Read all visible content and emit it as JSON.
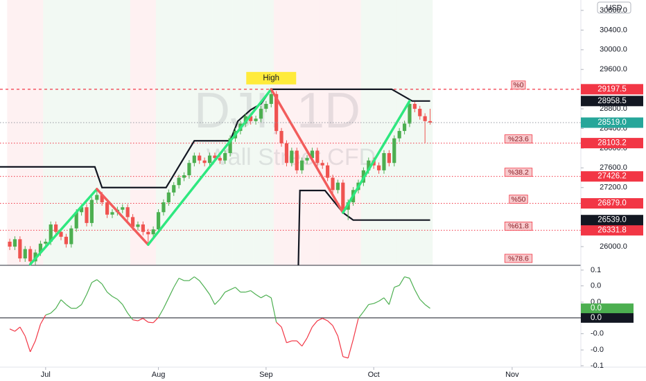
{
  "chart_data": [
    {
      "type": "candlestick",
      "title": "DJI, 1D",
      "subtitle": "Wall Street CFD",
      "currency": "USD",
      "up_color": "#4caf50",
      "down_color": "#ef5350",
      "open": [
        26100,
        26000,
        26150,
        25760,
        25950,
        25700,
        25880,
        26060,
        26100,
        26450,
        26300,
        26200,
        26050,
        26370,
        26700,
        26800,
        26480,
        26950,
        27050,
        26900,
        26650,
        26700,
        26750,
        26800,
        26600,
        26400,
        26450,
        26300,
        26250,
        26350,
        26700,
        26900,
        27100,
        27250,
        27400,
        27450,
        27700,
        27850,
        27750,
        27700,
        27850,
        27800,
        27750,
        27900,
        28200,
        28350,
        28500,
        28650,
        28550,
        28600,
        28800,
        28900,
        29100,
        28350,
        28100,
        27700,
        27950,
        27550,
        27750,
        27800,
        27950,
        27700,
        27650,
        27400,
        27150,
        27300,
        26750,
        26900,
        27150,
        27300,
        27550,
        27750,
        27650,
        27550,
        27900,
        27700,
        28200,
        28350,
        28500,
        28900,
        28800,
        28650,
        28550
      ],
      "high": [
        26160,
        26210,
        26210,
        26010,
        26010,
        25940,
        26120,
        26160,
        26510,
        26510,
        26360,
        26260,
        26430,
        26760,
        26860,
        26860,
        27010,
        27170,
        27110,
        26960,
        26760,
        26810,
        26860,
        26860,
        26660,
        26510,
        26510,
        26360,
        26410,
        26760,
        26960,
        27160,
        27310,
        27460,
        27510,
        27760,
        27910,
        27910,
        27810,
        27910,
        27910,
        27860,
        27960,
        28260,
        28410,
        28560,
        28710,
        28710,
        28660,
        28860,
        28960,
        29197.5,
        29160,
        28410,
        28160,
        28010,
        28010,
        27810,
        27860,
        28010,
        28010,
        27760,
        27710,
        27460,
        27360,
        27360,
        26960,
        27210,
        27360,
        27610,
        27810,
        27810,
        27710,
        27960,
        27960,
        28260,
        28410,
        28560,
        28958.5,
        28940,
        28860,
        28710,
        28800
      ],
      "low": [
        25930,
        25930,
        25690,
        25690,
        25640,
        25630,
        25810,
        25990,
        26030,
        26230,
        26130,
        25980,
        25980,
        26300,
        26630,
        26410,
        26410,
        26880,
        26830,
        26580,
        26580,
        26630,
        26680,
        26530,
        26330,
        26330,
        26230,
        26040,
        26180,
        26280,
        26630,
        26830,
        27030,
        27180,
        27330,
        27380,
        27630,
        27680,
        27630,
        27630,
        27730,
        27680,
        27680,
        27830,
        28130,
        28280,
        28430,
        28480,
        28480,
        28530,
        28730,
        28830,
        28280,
        28030,
        27630,
        27630,
        27480,
        27480,
        27680,
        27730,
        27630,
        27580,
        27330,
        27080,
        27080,
        26690,
        26539,
        26830,
        27080,
        27230,
        27480,
        27580,
        27480,
        27480,
        27630,
        27630,
        28130,
        28280,
        28430,
        28730,
        28580,
        28110,
        28480
      ],
      "close": [
        26000,
        26150,
        25760,
        25950,
        25700,
        25880,
        26060,
        26100,
        26450,
        26300,
        26200,
        26050,
        26370,
        26700,
        26800,
        26480,
        26950,
        27050,
        26900,
        26650,
        26700,
        26750,
        26800,
        26600,
        26400,
        26450,
        26300,
        26250,
        26350,
        26700,
        26900,
        27100,
        27250,
        27400,
        27450,
        27700,
        27850,
        27750,
        27700,
        27850,
        27800,
        27750,
        27900,
        28200,
        28350,
        28500,
        28650,
        28550,
        28600,
        28800,
        28900,
        29100,
        28350,
        28100,
        27700,
        27950,
        27550,
        27750,
        27800,
        27950,
        27700,
        27650,
        27400,
        27150,
        27300,
        26750,
        26900,
        27150,
        27300,
        27550,
        27750,
        27650,
        27550,
        27900,
        27700,
        28200,
        28350,
        28500,
        28900,
        28800,
        28650,
        28550,
        28519
      ],
      "xlim": [
        -1.9,
        111.4
      ],
      "xticks": [
        {
          "value": 7,
          "label": "Jul"
        },
        {
          "value": 29,
          "label": "Aug"
        },
        {
          "value": 50,
          "label": "Sep"
        },
        {
          "value": 71,
          "label": "Oct"
        },
        {
          "value": 98,
          "label": "Nov"
        }
      ],
      "ylim": [
        25620,
        31011
      ],
      "yticks": [
        {
          "value": 26000,
          "label": "26000.0"
        },
        {
          "value": 27200,
          "label": "27200.0"
        },
        {
          "value": 27600,
          "label": "27600.0"
        },
        {
          "value": 28000,
          "label": "28000.0"
        },
        {
          "value": 28400,
          "label": "28400.0"
        },
        {
          "value": 28800,
          "label": "28800.0"
        },
        {
          "value": 29600,
          "label": "29600.0"
        },
        {
          "value": 30000,
          "label": "30000.0"
        },
        {
          "value": 30400,
          "label": "30400.0"
        },
        {
          "value": 30800,
          "label": "30800.0"
        }
      ],
      "zigzag": {
        "x": [
          4,
          17,
          27,
          51,
          65,
          78
        ],
        "values": [
          25640,
          27170,
          26040,
          29197.5,
          26690,
          28958.5
        ],
        "up_color": "#2ee87f",
        "down_color": "#f25c5c",
        "peak_label": "High"
      },
      "channel": [
        {
          "x": [
            -1.9,
            16.6,
            18,
            30.5,
            36,
            43,
            44.5,
            47,
            49,
            51,
            74.5,
            78.5,
            82
          ],
          "values": [
            27620,
            27620,
            27200,
            27200,
            28150,
            28150,
            28550,
            28780,
            28900,
            29197.5,
            29197.5,
            28958.5,
            28958.5
          ],
          "color": "#131722",
          "tag": "28958.5"
        },
        {
          "x": [
            56.3,
            56.6,
            61.5,
            65,
            67,
            82
          ],
          "values": [
            25620,
            27140,
            27140,
            26690,
            26539,
            26539
          ],
          "color": "#131722",
          "tag": "26539.0"
        }
      ],
      "fib_color": "#f23645",
      "fib_levels": [
        {
          "name": "%0",
          "value": 29197.5,
          "label": "29197.5"
        },
        {
          "name": "%23.6",
          "value": 28103.2,
          "label": "28103.2"
        },
        {
          "name": "%38.2",
          "value": 27426.2,
          "label": "27426.2"
        },
        {
          "name": "%50",
          "value": 26879,
          "label": "26879.0"
        },
        {
          "name": "%61.8",
          "value": 26331.8,
          "label": "26331.8"
        },
        {
          "name": "%78.6",
          "value": 25552.9
        }
      ],
      "last_price": {
        "value": 28519,
        "label": "28519.0",
        "color": "#26a69a"
      }
    },
    {
      "type": "line",
      "up_color": "#4caf50",
      "down_color": "#f23645",
      "values": [
        -0.023,
        -0.028,
        -0.019,
        -0.038,
        -0.071,
        -0.048,
        -0.013,
        0.006,
        0.01,
        0.02,
        0.038,
        0.028,
        0.02,
        0.02,
        0.028,
        0.049,
        0.074,
        0.08,
        0.071,
        0.054,
        0.045,
        0.039,
        0.028,
        0.01,
        -0.004,
        -0.006,
        -0.001,
        -0.009,
        -0.01,
        0.001,
        0.02,
        0.042,
        0.064,
        0.083,
        0.078,
        0.078,
        0.086,
        0.078,
        0.064,
        0.049,
        0.028,
        0.039,
        0.054,
        0.059,
        0.064,
        0.054,
        0.054,
        0.057,
        0.049,
        0.042,
        0.048,
        0.042,
        -0.009,
        -0.019,
        -0.052,
        -0.048,
        -0.048,
        -0.059,
        -0.042,
        -0.019,
        -0.006,
        -0.001,
        -0.006,
        -0.016,
        -0.038,
        -0.081,
        -0.084,
        -0.045,
        -0.001,
        0.013,
        0.028,
        0.03,
        0.035,
        0.042,
        0.028,
        0.064,
        0.068,
        0.086,
        0.083,
        0.059,
        0.039,
        0.028,
        0.02
      ],
      "ylim": [
        -0.103,
        0.11
      ],
      "yticks": [
        {
          "value": -0.1,
          "label": "-0.1"
        },
        {
          "value": -0.067,
          "label": "-0.0"
        },
        {
          "value": -0.033,
          "label": "-0.0"
        },
        {
          "value": 0.033,
          "label": "0.0"
        },
        {
          "value": 0.067,
          "label": "0.0"
        },
        {
          "value": 0.1,
          "label": "0.1"
        }
      ],
      "zero": {
        "value": 0,
        "label": "0.0"
      },
      "last_label": "0.0"
    }
  ]
}
